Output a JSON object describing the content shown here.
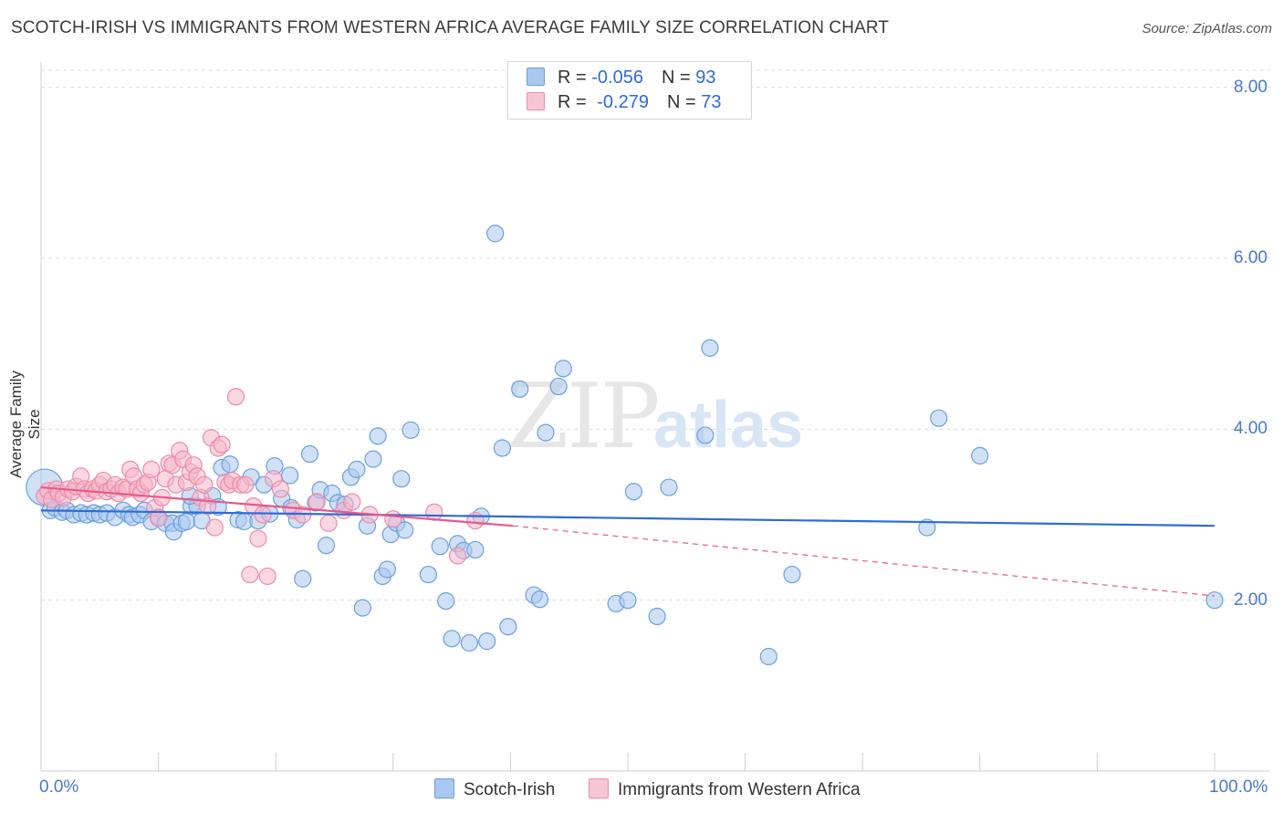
{
  "title": "SCOTCH-IRISH VS IMMIGRANTS FROM WESTERN AFRICA AVERAGE FAMILY SIZE CORRELATION CHART",
  "source": "Source: ZipAtlas.com",
  "legend": {
    "rows": [
      {
        "r_label": "R = ",
        "r_value": "-0.056",
        "n_label": "N = ",
        "n_value": "93",
        "color": "#a9c8ef"
      },
      {
        "r_label": "R = ",
        "r_value": "-0.279",
        "n_label": "N = ",
        "n_value": "73",
        "color": "#f6b6c8"
      }
    ]
  },
  "bottom_legend": [
    {
      "label": "Scotch-Irish",
      "color": "#a9c8ef"
    },
    {
      "label": "Immigrants from Western Africa",
      "color": "#f6b6c8"
    }
  ],
  "chart_data": {
    "type": "scatter",
    "ylabel": "Average Family Size",
    "xlabel": "",
    "xlim": [
      0,
      100
    ],
    "ylim": [
      0,
      8.2
    ],
    "x_tick_labels": [
      "0.0%",
      "100.0%"
    ],
    "y_ticks": [
      2,
      4,
      6,
      8
    ],
    "y_tick_labels": [
      "2.00",
      "4.00",
      "6.00",
      "8.00"
    ],
    "grid": true,
    "series": [
      {
        "name": "Scotch-Irish",
        "color": "#6a9ee0",
        "fill": "#a9c8ef",
        "trend": {
          "x": [
            0,
            100
          ],
          "y": [
            3.05,
            2.87
          ],
          "color": "#2e6bd6"
        },
        "points": [
          [
            0.3,
            3.32
          ],
          [
            0.8,
            3.05
          ],
          [
            1.2,
            3.08
          ],
          [
            1.8,
            3.03
          ],
          [
            2.2,
            3.05
          ],
          [
            2.8,
            3.0
          ],
          [
            3.4,
            3.02
          ],
          [
            3.9,
            3.0
          ],
          [
            4.5,
            3.02
          ],
          [
            5.0,
            3.0
          ],
          [
            5.6,
            3.02
          ],
          [
            6.3,
            2.97
          ],
          [
            7.0,
            3.05
          ],
          [
            7.5,
            3.0
          ],
          [
            7.8,
            2.97
          ],
          [
            8.4,
            3.0
          ],
          [
            8.8,
            3.05
          ],
          [
            9.4,
            2.92
          ],
          [
            10.0,
            2.97
          ],
          [
            10.6,
            2.9
          ],
          [
            11.2,
            2.9
          ],
          [
            11.3,
            2.8
          ],
          [
            12.0,
            2.9
          ],
          [
            12.4,
            2.92
          ],
          [
            12.8,
            3.1
          ],
          [
            13.3,
            3.1
          ],
          [
            13.7,
            2.93
          ],
          [
            14.6,
            3.22
          ],
          [
            12.7,
            3.22
          ],
          [
            15.1,
            3.09
          ],
          [
            15.4,
            3.55
          ],
          [
            16.1,
            3.59
          ],
          [
            16.8,
            2.94
          ],
          [
            17.3,
            2.92
          ],
          [
            17.9,
            3.44
          ],
          [
            18.5,
            2.93
          ],
          [
            19.0,
            3.35
          ],
          [
            19.5,
            3.01
          ],
          [
            19.9,
            3.57
          ],
          [
            20.5,
            3.19
          ],
          [
            21.2,
            3.46
          ],
          [
            21.3,
            3.08
          ],
          [
            21.8,
            2.94
          ],
          [
            22.3,
            2.25
          ],
          [
            22.9,
            3.71
          ],
          [
            23.4,
            3.14
          ],
          [
            23.8,
            3.29
          ],
          [
            24.3,
            2.64
          ],
          [
            24.8,
            3.25
          ],
          [
            25.3,
            3.14
          ],
          [
            25.9,
            3.12
          ],
          [
            26.4,
            3.44
          ],
          [
            26.9,
            3.53
          ],
          [
            27.4,
            1.91
          ],
          [
            27.8,
            2.87
          ],
          [
            28.3,
            3.65
          ],
          [
            28.7,
            3.92
          ],
          [
            29.1,
            2.28
          ],
          [
            29.5,
            2.36
          ],
          [
            29.8,
            2.77
          ],
          [
            30.3,
            2.9
          ],
          [
            30.7,
            3.42
          ],
          [
            31.0,
            2.82
          ],
          [
            31.5,
            3.99
          ],
          [
            33.0,
            2.3
          ],
          [
            34.0,
            2.63
          ],
          [
            34.5,
            1.99
          ],
          [
            35.0,
            1.55
          ],
          [
            35.5,
            2.66
          ],
          [
            36.0,
            2.58
          ],
          [
            36.5,
            1.5
          ],
          [
            37.0,
            2.59
          ],
          [
            37.5,
            2.98
          ],
          [
            38.0,
            1.52
          ],
          [
            38.7,
            6.29
          ],
          [
            39.3,
            3.78
          ],
          [
            39.8,
            1.69
          ],
          [
            40.8,
            4.47
          ],
          [
            42.0,
            2.06
          ],
          [
            42.5,
            2.01
          ],
          [
            43.0,
            3.96
          ],
          [
            44.1,
            4.5
          ],
          [
            44.5,
            4.71
          ],
          [
            49.0,
            1.96
          ],
          [
            50.0,
            2.0
          ],
          [
            50.5,
            3.27
          ],
          [
            52.5,
            1.81
          ],
          [
            53.5,
            3.32
          ],
          [
            56.6,
            3.93
          ],
          [
            57.0,
            4.95
          ],
          [
            62.0,
            1.34
          ],
          [
            64.0,
            2.3
          ],
          [
            75.5,
            2.85
          ],
          [
            76.5,
            4.13
          ],
          [
            80.0,
            3.69
          ],
          [
            100.0,
            2.0
          ]
        ]
      },
      {
        "name": "Immigrants from Western Africa",
        "color": "#ee8aa8",
        "fill": "#f6b6c8",
        "trend": {
          "x": [
            0,
            40.2
          ],
          "y": [
            3.32,
            2.87
          ],
          "color": "#e8588a"
        },
        "trend_dashed": {
          "x": [
            40.2,
            100
          ],
          "y": [
            2.87,
            2.05
          ],
          "color": "#e8588a"
        },
        "points": [
          [
            0.3,
            3.22
          ],
          [
            0.6,
            3.28
          ],
          [
            0.9,
            3.18
          ],
          [
            1.3,
            3.3
          ],
          [
            1.5,
            3.25
          ],
          [
            1.9,
            3.2
          ],
          [
            2.3,
            3.3
          ],
          [
            2.7,
            3.27
          ],
          [
            3.0,
            3.33
          ],
          [
            3.4,
            3.45
          ],
          [
            3.7,
            3.3
          ],
          [
            4.0,
            3.25
          ],
          [
            4.4,
            3.3
          ],
          [
            4.7,
            3.28
          ],
          [
            5.0,
            3.35
          ],
          [
            5.3,
            3.4
          ],
          [
            5.6,
            3.27
          ],
          [
            6.0,
            3.3
          ],
          [
            6.3,
            3.35
          ],
          [
            6.6,
            3.25
          ],
          [
            7.0,
            3.32
          ],
          [
            7.3,
            3.3
          ],
          [
            7.6,
            3.53
          ],
          [
            7.9,
            3.45
          ],
          [
            8.2,
            3.3
          ],
          [
            8.5,
            3.25
          ],
          [
            8.8,
            3.35
          ],
          [
            9.1,
            3.38
          ],
          [
            9.4,
            3.53
          ],
          [
            9.7,
            3.08
          ],
          [
            10.0,
            2.96
          ],
          [
            10.3,
            3.2
          ],
          [
            10.6,
            3.42
          ],
          [
            10.9,
            3.6
          ],
          [
            11.2,
            3.58
          ],
          [
            11.5,
            3.35
          ],
          [
            11.8,
            3.75
          ],
          [
            12.1,
            3.65
          ],
          [
            12.4,
            3.38
          ],
          [
            12.7,
            3.5
          ],
          [
            13.0,
            3.58
          ],
          [
            13.3,
            3.45
          ],
          [
            13.6,
            3.2
          ],
          [
            13.9,
            3.35
          ],
          [
            14.2,
            3.1
          ],
          [
            14.5,
            3.9
          ],
          [
            14.8,
            2.85
          ],
          [
            15.1,
            3.78
          ],
          [
            15.4,
            3.82
          ],
          [
            15.7,
            3.38
          ],
          [
            16.0,
            3.35
          ],
          [
            16.3,
            3.4
          ],
          [
            16.6,
            4.38
          ],
          [
            17.0,
            3.35
          ],
          [
            17.4,
            3.35
          ],
          [
            17.8,
            2.3
          ],
          [
            18.1,
            3.1
          ],
          [
            18.5,
            2.72
          ],
          [
            18.9,
            3.0
          ],
          [
            19.3,
            2.28
          ],
          [
            19.8,
            3.42
          ],
          [
            20.4,
            3.3
          ],
          [
            21.5,
            3.05
          ],
          [
            22.3,
            3.0
          ],
          [
            23.5,
            3.15
          ],
          [
            24.5,
            2.9
          ],
          [
            25.8,
            3.05
          ],
          [
            26.5,
            3.15
          ],
          [
            28.0,
            3.0
          ],
          [
            30.0,
            2.95
          ],
          [
            33.5,
            3.03
          ],
          [
            35.5,
            2.52
          ],
          [
            37.0,
            2.93
          ]
        ]
      }
    ]
  }
}
